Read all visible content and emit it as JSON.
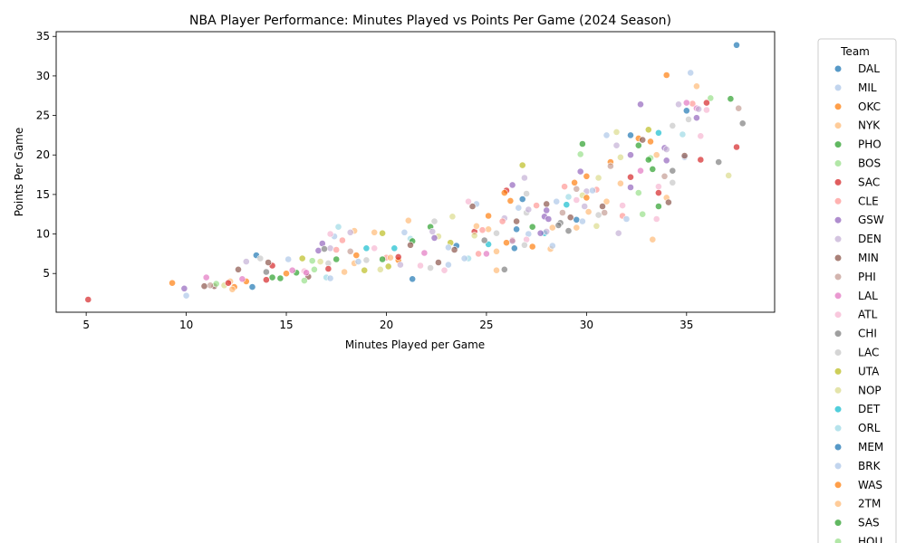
{
  "chart_data": {
    "type": "scatter",
    "title": "NBA Player Performance: Minutes Played vs Points Per Game (2024 Season)",
    "xlabel": "Minutes Played per Game",
    "ylabel": "Points Per Game",
    "xlim": [
      3.5,
      39.4
    ],
    "ylim": [
      0.1,
      35.6
    ],
    "xticks": [
      5,
      10,
      15,
      20,
      25,
      30,
      35
    ],
    "yticks": [
      5,
      10,
      15,
      20,
      25,
      30,
      35
    ],
    "grid": false,
    "legend": {
      "title": "Team",
      "placement": "outside-right",
      "entries": [
        {
          "label": "DAL",
          "color": "#1f77b4"
        },
        {
          "label": "MIL",
          "color": "#aec7e8"
        },
        {
          "label": "OKC",
          "color": "#ff7f0e"
        },
        {
          "label": "NYK",
          "color": "#ffbb78"
        },
        {
          "label": "PHO",
          "color": "#2ca02c"
        },
        {
          "label": "BOS",
          "color": "#98df8a"
        },
        {
          "label": "SAC",
          "color": "#d62728"
        },
        {
          "label": "CLE",
          "color": "#ff9896"
        },
        {
          "label": "GSW",
          "color": "#9467bd"
        },
        {
          "label": "DEN",
          "color": "#c5b0d5"
        },
        {
          "label": "MIN",
          "color": "#8c564b"
        },
        {
          "label": "PHI",
          "color": "#c49c94"
        },
        {
          "label": "LAL",
          "color": "#e377c2"
        },
        {
          "label": "ATL",
          "color": "#f7b6d2"
        },
        {
          "label": "CHI",
          "color": "#7f7f7f"
        },
        {
          "label": "LAC",
          "color": "#c7c7c7"
        },
        {
          "label": "UTA",
          "color": "#bcbd22"
        },
        {
          "label": "NOP",
          "color": "#dbdb8d"
        },
        {
          "label": "DET",
          "color": "#17becf"
        },
        {
          "label": "ORL",
          "color": "#9edae5"
        },
        {
          "label": "MEM",
          "color": "#1f77b4"
        },
        {
          "label": "BRK",
          "color": "#aec7e8"
        },
        {
          "label": "WAS",
          "color": "#ff7f0e"
        },
        {
          "label": "2TM",
          "color": "#ffbb78"
        },
        {
          "label": "SAS",
          "color": "#2ca02c"
        },
        {
          "label": "HOU",
          "color": "#98df8a"
        }
      ]
    },
    "points": [
      [
        37.5,
        33.9,
        0
      ],
      [
        35.2,
        30.4,
        1
      ],
      [
        34.0,
        30.1,
        2
      ],
      [
        35.5,
        28.7,
        3
      ],
      [
        37.2,
        27.1,
        4
      ],
      [
        36.2,
        27.2,
        5
      ],
      [
        36.0,
        26.6,
        6
      ],
      [
        35.3,
        26.5,
        7
      ],
      [
        32.7,
        26.4,
        8
      ],
      [
        34.6,
        26.4,
        9
      ],
      [
        37.6,
        25.9,
        11
      ],
      [
        35.0,
        25.6,
        0
      ],
      [
        35.5,
        25.9,
        12
      ],
      [
        36.0,
        25.7,
        13
      ],
      [
        35.5,
        24.7,
        8
      ],
      [
        37.8,
        24.0,
        14
      ],
      [
        35.1,
        24.5,
        15
      ],
      [
        34.3,
        23.7,
        15
      ],
      [
        33.1,
        23.2,
        16
      ],
      [
        31.5,
        22.9,
        17
      ],
      [
        34.8,
        22.6,
        19
      ],
      [
        33.6,
        22.8,
        18
      ],
      [
        32.2,
        22.5,
        0
      ],
      [
        33.2,
        21.7,
        2
      ],
      [
        32.6,
        22.1,
        2
      ],
      [
        32.8,
        21.9,
        10
      ],
      [
        35.7,
        22.4,
        13
      ],
      [
        29.8,
        21.4,
        4
      ],
      [
        31.5,
        21.2,
        9
      ],
      [
        33.9,
        20.9,
        8
      ],
      [
        34.0,
        20.7,
        9
      ],
      [
        34.9,
        19.7,
        1
      ],
      [
        33.2,
        19.6,
        5
      ],
      [
        33.1,
        19.4,
        4
      ],
      [
        34.0,
        19.3,
        8
      ],
      [
        34.9,
        19.9,
        10
      ],
      [
        35.7,
        19.4,
        6
      ],
      [
        36.6,
        19.1,
        14
      ],
      [
        31.7,
        19.7,
        17
      ],
      [
        31.2,
        19.1,
        2
      ],
      [
        29.7,
        20.1,
        5
      ],
      [
        26.8,
        18.7,
        16
      ],
      [
        31.2,
        18.6,
        11
      ],
      [
        32.7,
        18.0,
        12
      ],
      [
        29.7,
        17.9,
        8
      ],
      [
        33.3,
        18.2,
        4
      ],
      [
        34.3,
        18.0,
        14
      ],
      [
        33.9,
        17.3,
        11
      ],
      [
        37.1,
        17.4,
        17
      ],
      [
        30.0,
        17.3,
        2
      ],
      [
        30.6,
        17.1,
        17
      ],
      [
        26.9,
        17.1,
        9
      ],
      [
        32.2,
        17.2,
        6
      ],
      [
        31.7,
        16.4,
        3
      ],
      [
        34.3,
        16.5,
        15
      ],
      [
        29.4,
        16.5,
        2
      ],
      [
        28.9,
        16.0,
        7
      ],
      [
        26.3,
        16.2,
        8
      ],
      [
        32.2,
        15.9,
        8
      ],
      [
        33.6,
        16.0,
        13
      ],
      [
        29.5,
        15.7,
        11
      ],
      [
        30.0,
        15.4,
        9
      ],
      [
        30.5,
        15.6,
        7
      ],
      [
        29.8,
        14.9,
        17
      ],
      [
        29.1,
        14.7,
        19
      ],
      [
        30.0,
        14.6,
        2
      ],
      [
        31.0,
        14.1,
        3
      ],
      [
        29.5,
        14.3,
        13
      ],
      [
        33.6,
        15.2,
        6
      ],
      [
        34.0,
        14.6,
        3
      ],
      [
        26.0,
        15.5,
        6
      ],
      [
        25.9,
        15.2,
        2
      ],
      [
        27.0,
        15.1,
        15
      ],
      [
        26.2,
        14.2,
        2
      ],
      [
        24.5,
        13.8,
        1
      ],
      [
        26.8,
        14.4,
        0
      ],
      [
        28.5,
        14.1,
        1
      ],
      [
        29.0,
        13.7,
        18
      ],
      [
        28.0,
        13.8,
        10
      ],
      [
        29.9,
        13.5,
        9
      ],
      [
        30.8,
        13.5,
        10
      ],
      [
        32.6,
        15.2,
        5
      ],
      [
        33.6,
        13.5,
        4
      ],
      [
        34.1,
        14.0,
        10
      ],
      [
        30.1,
        12.8,
        3
      ],
      [
        30.9,
        12.7,
        11
      ],
      [
        31.8,
        12.3,
        7
      ],
      [
        32.0,
        11.9,
        1
      ],
      [
        30.6,
        12.4,
        15
      ],
      [
        32.8,
        12.5,
        5
      ],
      [
        29.5,
        11.8,
        0
      ],
      [
        29.8,
        11.6,
        1
      ],
      [
        28.8,
        12.7,
        11
      ],
      [
        27.9,
        12.2,
        8
      ],
      [
        27.0,
        12.7,
        15
      ],
      [
        26.6,
        13.3,
        1
      ],
      [
        27.1,
        13.1,
        9
      ],
      [
        24.3,
        13.5,
        10
      ],
      [
        23.3,
        12.2,
        17
      ],
      [
        25.1,
        12.3,
        2
      ],
      [
        28.1,
        11.9,
        8
      ],
      [
        28.7,
        11.4,
        14
      ],
      [
        25.9,
        12.0,
        9
      ],
      [
        26.5,
        11.6,
        10
      ],
      [
        25.8,
        11.6,
        7
      ],
      [
        27.3,
        10.9,
        4
      ],
      [
        28.3,
        10.8,
        3
      ],
      [
        29.1,
        10.4,
        14
      ],
      [
        27.9,
        10.1,
        18
      ],
      [
        28.0,
        10.3,
        9
      ],
      [
        27.7,
        10.1,
        8
      ],
      [
        27.1,
        10.0,
        1
      ],
      [
        26.5,
        10.6,
        0
      ],
      [
        25.5,
        10.1,
        15
      ],
      [
        25.1,
        10.6,
        3
      ],
      [
        24.8,
        10.5,
        7
      ],
      [
        24.4,
        10.3,
        6
      ],
      [
        24.4,
        9.8,
        17
      ],
      [
        24.5,
        11.0,
        3
      ],
      [
        22.2,
        10.9,
        4
      ],
      [
        22.3,
        10.3,
        9
      ],
      [
        22.6,
        9.7,
        17
      ],
      [
        22.4,
        11.6,
        15
      ],
      [
        21.1,
        11.7,
        3
      ],
      [
        20.9,
        10.2,
        1
      ],
      [
        21.2,
        9.4,
        19
      ],
      [
        21.3,
        9.1,
        4
      ],
      [
        22.4,
        9.5,
        8
      ],
      [
        23.2,
        8.9,
        16
      ],
      [
        23.5,
        8.5,
        0
      ],
      [
        23.1,
        8.3,
        1
      ],
      [
        23.4,
        8.0,
        10
      ],
      [
        25.1,
        8.7,
        18
      ],
      [
        25.5,
        7.8,
        3
      ],
      [
        25.0,
        7.5,
        12
      ],
      [
        24.6,
        7.5,
        7
      ],
      [
        24.1,
        6.9,
        19
      ],
      [
        26.3,
        9.2,
        6
      ],
      [
        26.4,
        8.2,
        0
      ],
      [
        27.3,
        8.4,
        2
      ],
      [
        28.2,
        8.1,
        3
      ],
      [
        28.3,
        8.5,
        1
      ],
      [
        27.0,
        9.3,
        13
      ],
      [
        26.9,
        8.6,
        15
      ],
      [
        26.3,
        9.1,
        9
      ],
      [
        23.1,
        6.1,
        1
      ],
      [
        22.9,
        5.4,
        13
      ],
      [
        22.6,
        6.4,
        10
      ],
      [
        21.7,
        6.0,
        13
      ],
      [
        22.2,
        5.7,
        15
      ],
      [
        20.4,
        8.2,
        18
      ],
      [
        20.0,
        7.0,
        7
      ],
      [
        20.6,
        6.7,
        2
      ],
      [
        19.8,
        6.8,
        4
      ],
      [
        20.1,
        5.9,
        16
      ],
      [
        20.7,
        6.1,
        9
      ],
      [
        20.2,
        7.0,
        3
      ],
      [
        19.4,
        10.2,
        3
      ],
      [
        19.8,
        10.1,
        16
      ],
      [
        18.4,
        10.4,
        3
      ],
      [
        18.2,
        10.2,
        9
      ],
      [
        19.0,
        8.2,
        18
      ],
      [
        19.4,
        8.2,
        13
      ],
      [
        19.0,
        6.7,
        15
      ],
      [
        18.4,
        6.3,
        3
      ],
      [
        18.5,
        7.3,
        2
      ],
      [
        18.6,
        6.5,
        1
      ],
      [
        17.8,
        9.2,
        7
      ],
      [
        17.6,
        10.9,
        19
      ],
      [
        17.4,
        9.7,
        1
      ],
      [
        17.2,
        10.0,
        13
      ],
      [
        17.2,
        8.2,
        9
      ],
      [
        16.8,
        8.8,
        8
      ],
      [
        16.6,
        7.9,
        8
      ],
      [
        16.7,
        6.5,
        17
      ],
      [
        17.1,
        6.3,
        15
      ],
      [
        17.5,
        6.8,
        4
      ],
      [
        17.1,
        5.6,
        6
      ],
      [
        17.0,
        4.5,
        19
      ],
      [
        17.2,
        4.4,
        1
      ],
      [
        16.3,
        6.6,
        5
      ],
      [
        15.8,
        6.9,
        16
      ],
      [
        16.1,
        4.6,
        10
      ],
      [
        15.9,
        4.1,
        5
      ],
      [
        15.5,
        5.1,
        4
      ],
      [
        15.0,
        5.0,
        2
      ],
      [
        15.3,
        5.4,
        12
      ],
      [
        15.1,
        6.8,
        1
      ],
      [
        14.3,
        6.0,
        6
      ],
      [
        14.1,
        6.4,
        10
      ],
      [
        14.0,
        5.2,
        14
      ],
      [
        14.3,
        4.5,
        4
      ],
      [
        13.5,
        7.3,
        0
      ],
      [
        13.7,
        6.9,
        15
      ],
      [
        13.0,
        6.5,
        9
      ],
      [
        12.6,
        5.5,
        10
      ],
      [
        12.2,
        4.0,
        3
      ],
      [
        12.4,
        3.3,
        2
      ],
      [
        12.3,
        3.0,
        3
      ],
      [
        11.4,
        3.4,
        10
      ],
      [
        11.2,
        3.5,
        11
      ],
      [
        11.5,
        3.7,
        5
      ],
      [
        11.0,
        4.5,
        12
      ],
      [
        10.9,
        3.4,
        10
      ],
      [
        9.9,
        3.1,
        8
      ],
      [
        10.0,
        2.2,
        1
      ],
      [
        9.3,
        3.8,
        2
      ],
      [
        5.1,
        1.7,
        6
      ],
      [
        13.3,
        3.3,
        0
      ],
      [
        13.0,
        4.0,
        2
      ],
      [
        14.0,
        4.2,
        6
      ],
      [
        14.7,
        4.4,
        4
      ],
      [
        15.9,
        5.3,
        13
      ],
      [
        16.4,
        5.5,
        5
      ],
      [
        18.9,
        5.4,
        16
      ],
      [
        19.7,
        5.5,
        17
      ],
      [
        21.3,
        4.3,
        0
      ],
      [
        25.9,
        5.5,
        14
      ],
      [
        25.5,
        5.4,
        3
      ],
      [
        29.5,
        10.8,
        3
      ],
      [
        31.8,
        13.6,
        13
      ],
      [
        33.3,
        9.3,
        3
      ],
      [
        31.6,
        10.1,
        9
      ],
      [
        37.5,
        21.0,
        6
      ],
      [
        35.6,
        25.8,
        9
      ],
      [
        33.5,
        20.0,
        3
      ],
      [
        32.2,
        20.0,
        8
      ],
      [
        31.0,
        22.5,
        1
      ],
      [
        32.6,
        21.2,
        4
      ],
      [
        29.2,
        12.1,
        10
      ],
      [
        30.5,
        11.0,
        17
      ],
      [
        24.1,
        14.1,
        13
      ],
      [
        20.6,
        7.1,
        6
      ],
      [
        18.2,
        7.8,
        11
      ],
      [
        17.9,
        5.2,
        3
      ],
      [
        16.0,
        5.1,
        12
      ],
      [
        16.9,
        8.1,
        14
      ],
      [
        17.5,
        8.0,
        7
      ],
      [
        21.2,
        8.6,
        10
      ],
      [
        21.9,
        7.6,
        12
      ],
      [
        23.9,
        6.9,
        1
      ],
      [
        24.9,
        9.2,
        14
      ],
      [
        12.8,
        4.3,
        12
      ],
      [
        11.9,
        3.5,
        17
      ],
      [
        12.1,
        3.8,
        6
      ],
      [
        28.6,
        11.1,
        14
      ],
      [
        28.0,
        13.0,
        8
      ],
      [
        30.3,
        15.5,
        1
      ],
      [
        27.5,
        13.6,
        7
      ],
      [
        26.0,
        8.9,
        2
      ],
      [
        35.0,
        26.6,
        12
      ],
      [
        33.5,
        11.9,
        13
      ]
    ]
  }
}
